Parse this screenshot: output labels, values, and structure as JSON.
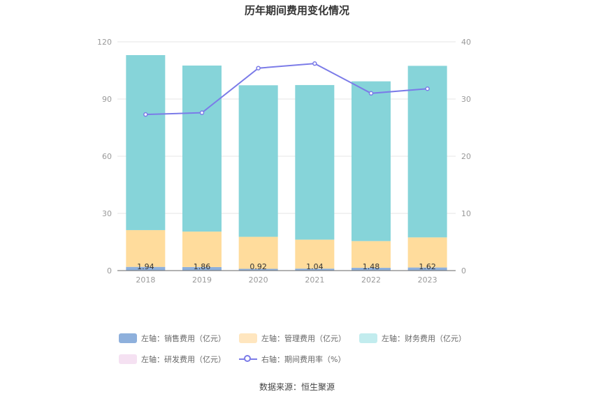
{
  "title": "历年期间费用变化情况",
  "source": "数据来源：恒生聚源",
  "colors": {
    "sales": "#8eb0dc",
    "admin": "#ffdc9c",
    "finance": "#86d4d9",
    "rd": "#f0d8ec",
    "rate": "#7b7be8",
    "axis_text": "#999999",
    "grid": "#e6e6e6"
  },
  "legend": [
    {
      "key": "sales",
      "label": "左轴：销售费用（亿元）",
      "color": "#8eb0dc"
    },
    {
      "key": "admin",
      "label": "左轴：管理费用（亿元）",
      "color": "#ffe6bf"
    },
    {
      "key": "finance",
      "label": "左轴：财务费用（亿元）",
      "color": "#c2ecee"
    },
    {
      "key": "rd",
      "label": "左轴：研发费用（亿元）",
      "color": "#f5e1f2"
    },
    {
      "key": "rate",
      "label": "右轴：期间费用率（%）",
      "color": "#7b7be8"
    }
  ],
  "chart_data": {
    "type": "bar",
    "stacked": true,
    "categories": [
      "2018",
      "2019",
      "2020",
      "2021",
      "2022",
      "2023"
    ],
    "series": [
      {
        "key": "sales",
        "name": "左轴：销售费用（亿元）",
        "axis": "left",
        "values": [
          1.94,
          1.86,
          0.92,
          1.04,
          1.48,
          1.62
        ]
      },
      {
        "key": "admin",
        "name": "左轴：管理费用（亿元）",
        "axis": "left",
        "values": [
          19.3,
          18.6,
          16.8,
          15.2,
          14.0,
          15.8
        ]
      },
      {
        "key": "rd",
        "name": "左轴：研发费用（亿元）",
        "axis": "left",
        "values": [
          0,
          0,
          0,
          0,
          0,
          0
        ]
      },
      {
        "key": "finance",
        "name": "左轴：财务费用（亿元）",
        "axis": "left",
        "values": [
          91.8,
          87.1,
          79.5,
          81.1,
          83.8,
          90.0
        ]
      },
      {
        "key": "rate",
        "name": "右轴：期间费用率（%）",
        "axis": "right",
        "type": "line",
        "values": [
          27.3,
          27.6,
          35.4,
          36.2,
          31.0,
          31.8
        ]
      }
    ],
    "data_labels": [
      "1.94",
      "1.86",
      "0.92",
      "1.04",
      "1.48",
      "1.62"
    ],
    "y_left": {
      "min": 0,
      "max": 120,
      "ticks": [
        "0",
        "30",
        "60",
        "90",
        "120"
      ]
    },
    "y_right": {
      "min": 0,
      "max": 40,
      "ticks": [
        "0",
        "10",
        "20",
        "30",
        "40"
      ]
    },
    "grid": true,
    "legend_position": "bottom"
  }
}
